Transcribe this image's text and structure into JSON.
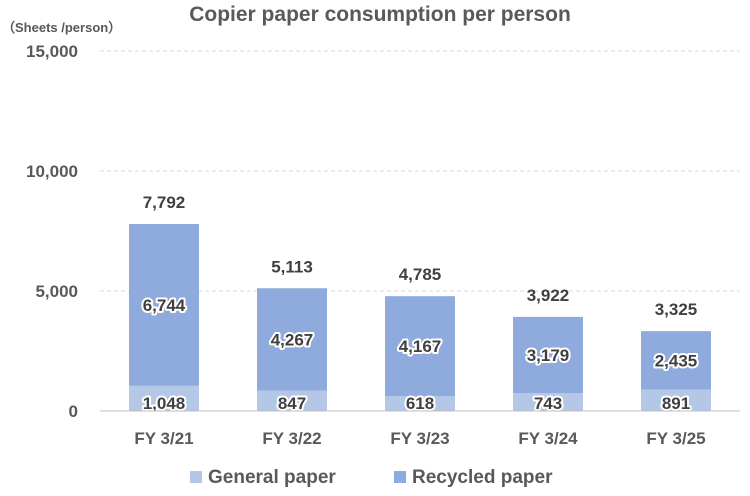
{
  "chart_data": {
    "type": "bar",
    "stacked": true,
    "title": "Copier paper consumption per person",
    "unit_label": "（Sheets /person）",
    "categories": [
      "FY 3/21",
      "FY 3/22",
      "FY 3/23",
      "FY 3/24",
      "FY 3/25"
    ],
    "series": [
      {
        "name": "General paper",
        "values": [
          1048,
          847,
          618,
          743,
          891
        ],
        "labels": [
          "1,048",
          "847",
          "618",
          "743",
          "891"
        ],
        "color": "#b4c7e7"
      },
      {
        "name": "Recycled paper",
        "values": [
          6744,
          4267,
          4167,
          3179,
          2435
        ],
        "labels": [
          "6,744",
          "4,267",
          "4,167",
          "3,179",
          "2,435"
        ],
        "color": "#8faadc"
      }
    ],
    "totals": [
      7792,
      5113,
      4785,
      3922,
      3325
    ],
    "total_labels": [
      "7,792",
      "5,113",
      "4,785",
      "3,922",
      "3,325"
    ],
    "ylim": [
      0,
      15000
    ],
    "yticks": [
      0,
      5000,
      10000,
      15000
    ],
    "ytick_labels": [
      "0",
      "5,000",
      "10,000",
      "15,000"
    ],
    "grid": true,
    "legend_position": "bottom"
  }
}
